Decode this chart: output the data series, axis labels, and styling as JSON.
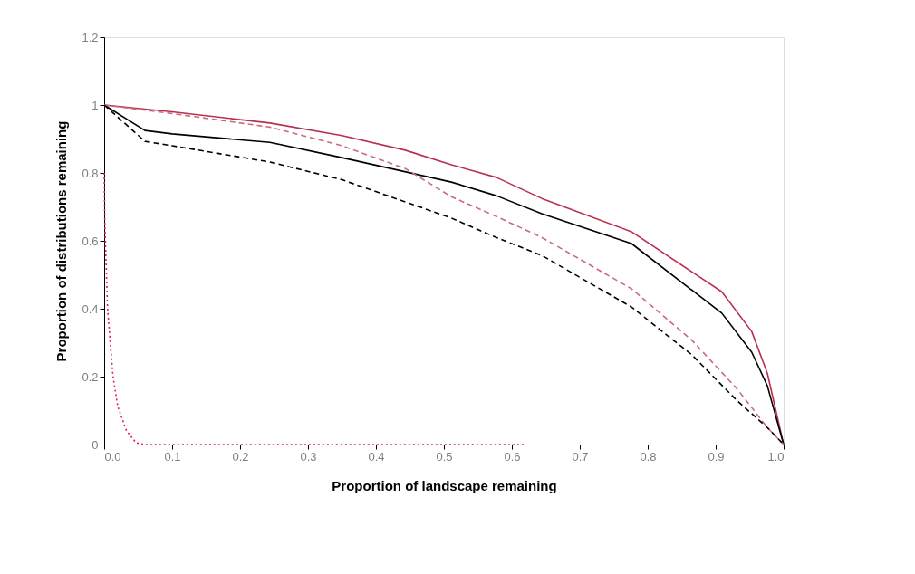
{
  "chart_data": {
    "type": "line",
    "xlabel": "Proportion of landscape remaining",
    "ylabel": "Proportion of distributions remaining",
    "xlim": [
      0,
      1
    ],
    "ylim": [
      0,
      1.2
    ],
    "xticks": [
      {
        "value": 0,
        "label": "0.0"
      },
      0.1,
      0.2,
      0.3,
      0.4,
      0.5,
      0.6,
      0.7,
      0.8,
      0.9,
      {
        "value": 1,
        "label": "1.0"
      }
    ],
    "yticks": [
      0,
      0.2,
      0.4,
      0.6,
      0.8,
      1,
      1.2
    ],
    "grid": false,
    "legend": false,
    "marker": "none",
    "series": [
      {
        "color": "#b8304e",
        "line_style": "solid",
        "x": [
          0,
          0.1,
          0.244,
          0.35,
          0.443,
          0.511,
          0.577,
          0.644,
          0.776,
          0.909,
          0.953,
          0.976,
          1
        ],
        "values": [
          1,
          0.98,
          0.947,
          0.91,
          0.867,
          0.824,
          0.787,
          0.725,
          0.627,
          0.45,
          0.333,
          0.21,
          0
        ]
      },
      {
        "color": "#c86a80",
        "line_style": "dashed",
        "x": [
          0,
          0.1,
          0.244,
          0.35,
          0.443,
          0.511,
          0.577,
          0.644,
          0.776,
          0.865,
          0.931,
          0.976,
          1
        ],
        "values": [
          1,
          0.975,
          0.935,
          0.88,
          0.813,
          0.73,
          0.672,
          0.61,
          0.459,
          0.307,
          0.165,
          0.05,
          0
        ]
      },
      {
        "color": "#000000",
        "line_style": "solid",
        "x": [
          0,
          0.06,
          0.1,
          0.244,
          0.35,
          0.511,
          0.577,
          0.644,
          0.776,
          0.909,
          0.953,
          0.976,
          1
        ],
        "values": [
          1,
          0.925,
          0.915,
          0.89,
          0.845,
          0.773,
          0.733,
          0.68,
          0.592,
          0.387,
          0.272,
          0.173,
          0
        ]
      },
      {
        "color": "#000000",
        "line_style": "dashed",
        "x": [
          0,
          0.06,
          0.1,
          0.244,
          0.35,
          0.511,
          0.577,
          0.644,
          0.776,
          0.865,
          0.931,
          0.976,
          1
        ],
        "values": [
          1,
          0.893,
          0.88,
          0.832,
          0.78,
          0.667,
          0.61,
          0.557,
          0.405,
          0.264,
          0.13,
          0.05,
          0
        ]
      },
      {
        "color": "#e0205a",
        "line_style": "dotted",
        "x": [
          0,
          0.001,
          0.005,
          0.013,
          0.02,
          0.033,
          0.047,
          0.06,
          0.62
        ],
        "values": [
          0.8,
          0.645,
          0.4,
          0.2,
          0.112,
          0.04,
          0.005,
          0,
          0
        ]
      }
    ]
  }
}
